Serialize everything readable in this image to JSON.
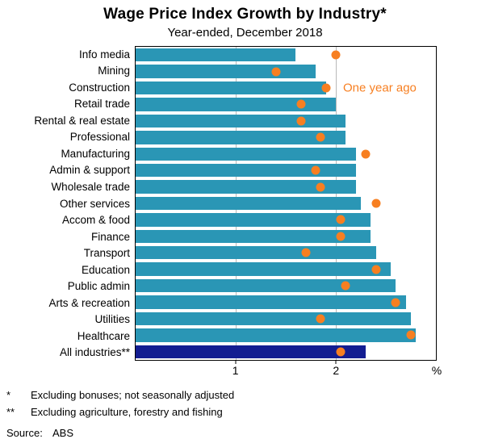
{
  "chart_data": {
    "type": "bar",
    "orientation": "horizontal",
    "title": "Wage Price Index Growth by Industry*",
    "subtitle": "Year-ended, December 2018",
    "xlim": [
      0,
      3
    ],
    "x_ticks": [
      1,
      2
    ],
    "x_axis_unit": "%",
    "grid": true,
    "categories": [
      "Info media",
      "Mining",
      "Construction",
      "Retail trade",
      "Rental & real estate",
      "Professional",
      "Manufacturing",
      "Admin & support",
      "Wholesale trade",
      "Other services",
      "Accom & food",
      "Finance",
      "Transport",
      "Education",
      "Public admin",
      "Arts & recreation",
      "Utilities",
      "Healthcare",
      "All industries**"
    ],
    "series": [
      {
        "name": "Year-ended December 2018",
        "marker": "bar",
        "values": [
          1.6,
          1.8,
          1.9,
          2.0,
          2.1,
          2.1,
          2.2,
          2.2,
          2.2,
          2.25,
          2.35,
          2.35,
          2.4,
          2.55,
          2.6,
          2.7,
          2.75,
          2.8,
          2.3
        ]
      },
      {
        "name": "One year ago",
        "marker": "dot",
        "values": [
          2.0,
          1.4,
          1.9,
          1.65,
          1.65,
          1.85,
          2.3,
          1.8,
          1.85,
          2.4,
          2.05,
          2.05,
          1.7,
          2.4,
          2.1,
          2.6,
          1.85,
          2.75,
          2.05
        ]
      }
    ],
    "highlight_index": 18,
    "annotation": {
      "text": "One year ago",
      "row_index": 2,
      "x": 2.0
    },
    "colors": {
      "bar": "#2a96b5",
      "highlight_bar": "#131d91",
      "dot": "#f77f21",
      "gridline": "#b9b9b9"
    }
  },
  "footnotes": [
    {
      "marker": "*",
      "text": "Excluding bonuses; not seasonally adjusted"
    },
    {
      "marker": "**",
      "text": "Excluding agriculture, forestry and fishing"
    }
  ],
  "source": {
    "label": "Source:",
    "value": "ABS"
  }
}
